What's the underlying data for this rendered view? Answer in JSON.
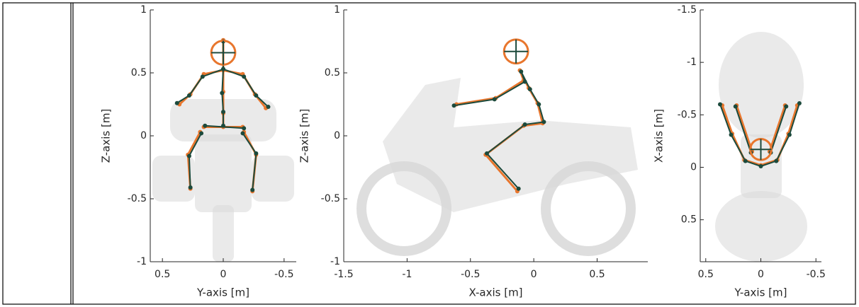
{
  "chart_data": [
    {
      "type": "line",
      "xlabel": "Y-axis [m]",
      "ylabel": "Z-axis [m]",
      "xlim": [
        0.6,
        -0.6
      ],
      "ylim": [
        -1,
        1
      ],
      "xticks": [
        0.5,
        0,
        -0.5
      ],
      "yticks": [
        -1,
        -0.5,
        0,
        0.5,
        1
      ],
      "head": {
        "x": 0,
        "y": 0.66,
        "r": 0.095
      },
      "series": [
        {
          "color": "#e8762d",
          "x": [
            0.36,
            0.27,
            0.16,
            0,
            -0.16,
            -0.26,
            -0.35,
            null,
            0,
            0,
            0,
            0,
            0,
            null,
            0.16,
            -0.16,
            null,
            0.19,
            0.29,
            0.27,
            null,
            -0.17,
            -0.27,
            -0.24
          ],
          "y": [
            0.25,
            0.33,
            0.49,
            0.52,
            0.49,
            0.33,
            0.22,
            null,
            0.76,
            0.52,
            0.35,
            0.18,
            0.07,
            null,
            0.07,
            0.07,
            null,
            0.03,
            -0.15,
            -0.42,
            null,
            0.03,
            -0.15,
            -0.44
          ]
        },
        {
          "color": "#1c4a3c",
          "x": [
            0.38,
            0.28,
            0.17,
            0,
            -0.17,
            -0.27,
            -0.37,
            null,
            0,
            0,
            0.01,
            0,
            0,
            null,
            0.15,
            -0.17,
            null,
            0.18,
            0.28,
            0.27,
            null,
            -0.16,
            -0.27,
            -0.24
          ],
          "y": [
            0.26,
            0.32,
            0.47,
            0.53,
            0.47,
            0.32,
            0.23,
            null,
            0.75,
            0.53,
            0.34,
            0.19,
            0.08,
            null,
            0.08,
            0.06,
            null,
            0.02,
            -0.16,
            -0.41,
            null,
            0.02,
            -0.14,
            -0.43
          ]
        }
      ]
    },
    {
      "type": "line",
      "xlabel": "X-axis [m]",
      "ylabel": "Z-axis [m]",
      "xlim": [
        -1.5,
        0.9
      ],
      "ylim": [
        -1,
        1
      ],
      "xticks": [
        -1.5,
        -1,
        -0.5,
        0,
        0.5
      ],
      "yticks": [
        -1,
        -0.5,
        0,
        0.5,
        1
      ],
      "head": {
        "x": -0.14,
        "y": 0.67,
        "r": 0.095
      },
      "series": [
        {
          "color": "#e8762d",
          "x": [
            -0.61,
            -0.3,
            -0.08,
            -0.11,
            -0.04,
            0.03,
            0.07,
            -0.08,
            -0.38,
            -0.13
          ],
          "y": [
            0.25,
            0.3,
            0.44,
            0.52,
            0.38,
            0.26,
            0.1,
            0.08,
            -0.15,
            -0.44
          ]
        },
        {
          "color": "#1c4a3c",
          "x": [
            -0.63,
            -0.31,
            -0.07,
            -0.1,
            -0.03,
            0.04,
            0.08,
            -0.07,
            -0.37,
            -0.12
          ],
          "y": [
            0.24,
            0.29,
            0.43,
            0.51,
            0.37,
            0.25,
            0.11,
            0.09,
            -0.14,
            -0.42
          ]
        }
      ]
    },
    {
      "type": "line",
      "xlabel": "Y-axis [m]",
      "ylabel": "X-axis [m]",
      "xlim": [
        0.55,
        -0.55
      ],
      "ylim": [
        0.9,
        -1.5
      ],
      "xticks": [
        0.5,
        0,
        -0.5
      ],
      "yticks": [
        -1.5,
        -1,
        -0.5,
        0,
        0.5
      ],
      "head": {
        "x": 0,
        "y": -0.17,
        "r": 0.1
      },
      "series": [
        {
          "color": "#e8762d",
          "x": [
            0.35,
            0.26,
            0.15,
            0,
            -0.15,
            -0.25,
            -0.33,
            null,
            0.08,
            0.22,
            null,
            -0.08,
            -0.22
          ],
          "y": [
            -0.59,
            -0.32,
            -0.07,
            -0.02,
            -0.07,
            -0.32,
            -0.59,
            null,
            -0.15,
            -0.59,
            null,
            -0.15,
            -0.59
          ]
        },
        {
          "color": "#1c4a3c",
          "x": [
            0.37,
            0.27,
            0.14,
            0,
            -0.14,
            -0.26,
            -0.35,
            null,
            0.09,
            0.23,
            null,
            -0.09,
            -0.23
          ],
          "y": [
            -0.6,
            -0.31,
            -0.06,
            -0.01,
            -0.06,
            -0.31,
            -0.61,
            null,
            -0.14,
            -0.58,
            null,
            -0.14,
            -0.58
          ]
        }
      ]
    }
  ]
}
